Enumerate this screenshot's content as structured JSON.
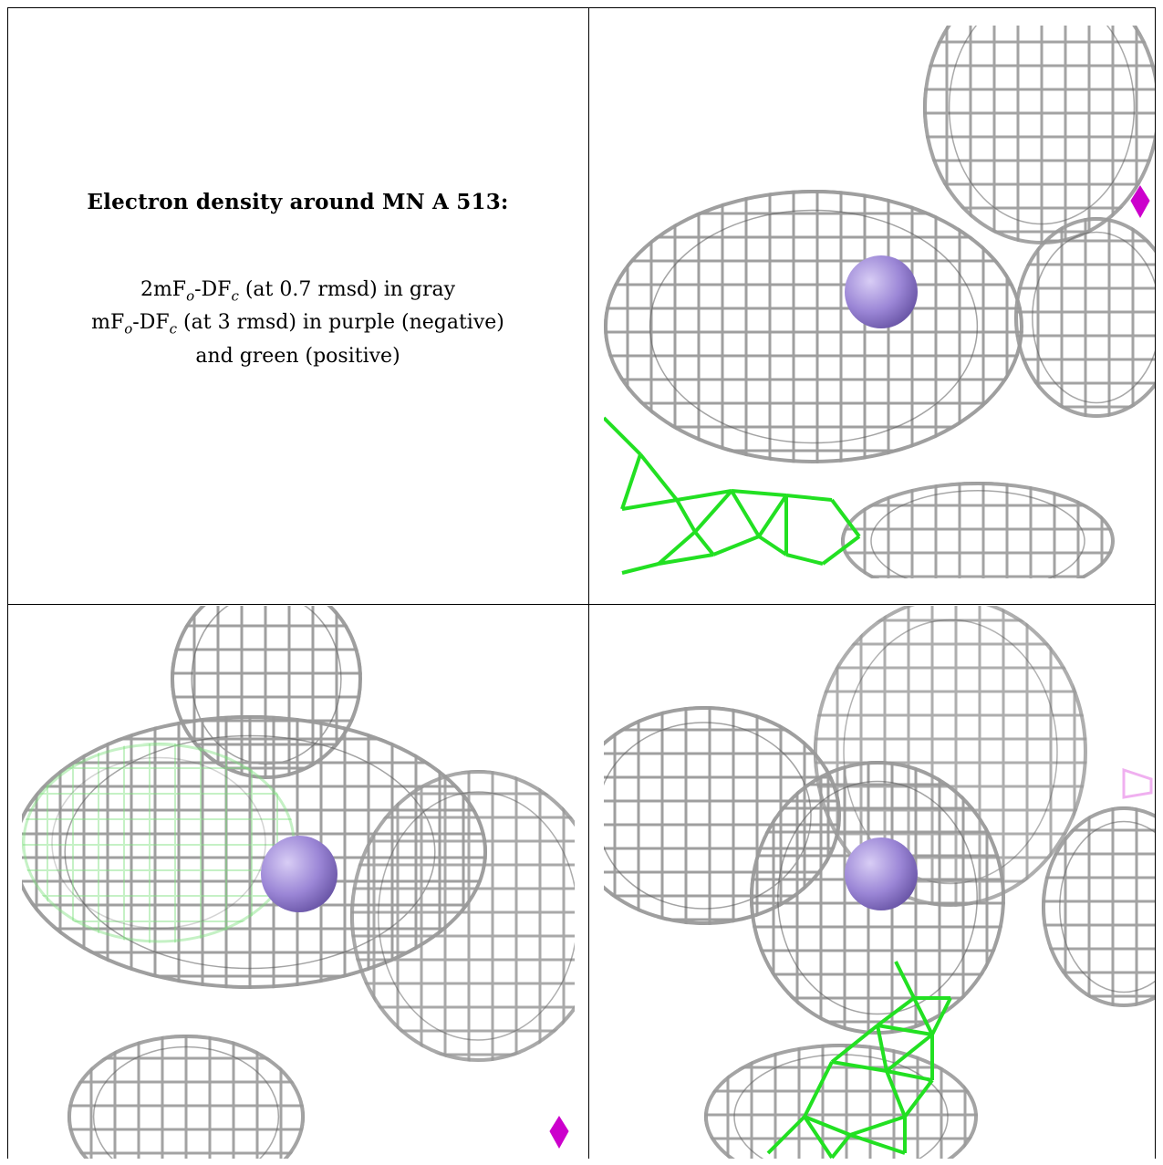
{
  "caption": {
    "title": "Electron density around MN A 513:",
    "line1_prefix": "2mF",
    "line1_sub1": "o",
    "line1_mid": "-DF",
    "line1_sub2": "c",
    "line1_suffix": " (at 0.7 rmsd) in gray",
    "line2_prefix": "mF",
    "line2_sub1": "o",
    "line2_mid": "-DF",
    "line2_sub2": "c",
    "line2_suffix": " (at 3 rmsd) in purple (negative)",
    "line3": "and green (positive)"
  },
  "colors": {
    "mesh_gray": "#9a9a9a",
    "mesh_dark": "#5e5e5e",
    "mesh_positive": "#22e022",
    "mesh_negative": "#cc00cc",
    "atom": "#9b86d6"
  },
  "panels": [
    {
      "id": "top-right",
      "atom": "MN"
    },
    {
      "id": "bottom-left",
      "atom": "MN"
    },
    {
      "id": "bottom-right",
      "atom": "MN"
    }
  ]
}
